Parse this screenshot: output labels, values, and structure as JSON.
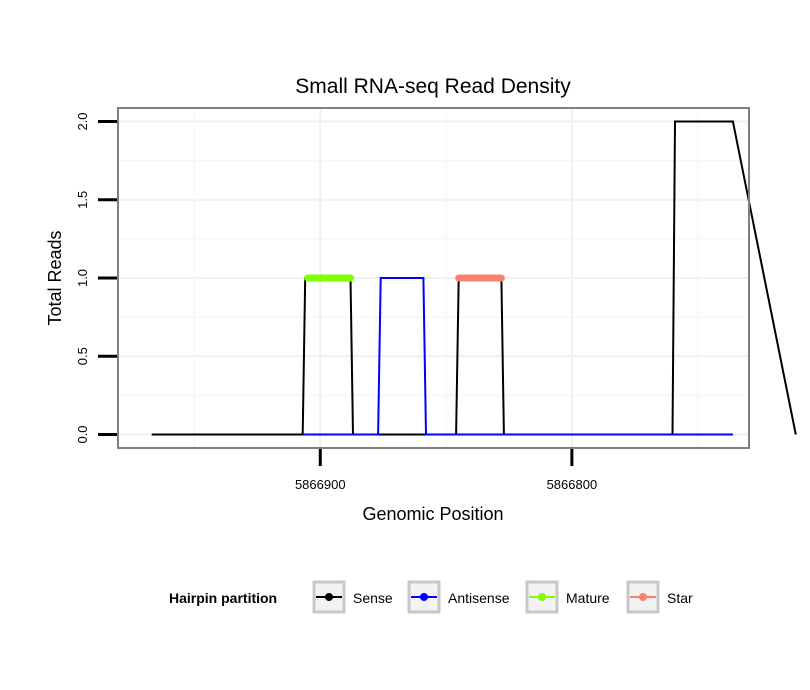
{
  "chart_data": {
    "type": "line",
    "title": "Small RNA-seq Read Density",
    "xlabel": "Genomic Position",
    "ylabel": "Total Reads",
    "x_reversed": true,
    "xlim": [
      5866980,
      5866730
    ],
    "ylim": [
      -0.08,
      2.08
    ],
    "x_ticks": [
      {
        "value": 5866900,
        "label": "5866900"
      },
      {
        "value": 5866800,
        "label": "5866800"
      }
    ],
    "y_ticks": [
      {
        "value": 0.0,
        "label": "0.0"
      },
      {
        "value": 0.5,
        "label": "0.5"
      },
      {
        "value": 1.0,
        "label": "1.0"
      },
      {
        "value": 1.5,
        "label": "1.5"
      },
      {
        "value": 2.0,
        "label": "2.0"
      }
    ],
    "grid": true,
    "series": [
      {
        "name": "Sense",
        "color": "#000000",
        "x": [
          5866967,
          5866907,
          5866906,
          5866888,
          5866887,
          5866846,
          5866845,
          5866828,
          5866827,
          5866760,
          5866759,
          5866736,
          5866711
        ],
        "y": [
          0,
          0,
          1,
          1,
          0,
          0,
          1,
          1,
          0,
          0,
          2,
          2,
          0
        ]
      },
      {
        "name": "Antisense",
        "color": "#0000ff",
        "x": [
          5866907,
          5866877,
          5866876,
          5866859,
          5866858,
          5866760,
          5866759,
          5866736
        ],
        "y": [
          0,
          0,
          1,
          1,
          0,
          0,
          0,
          0
        ]
      },
      {
        "name": "Mature",
        "color": "#7fff00",
        "x": [
          5866905,
          5866888
        ],
        "y": [
          1,
          1
        ]
      },
      {
        "name": "Star",
        "color": "#fa8072",
        "x": [
          5866845,
          5866828
        ],
        "y": [
          1,
          1
        ]
      }
    ]
  },
  "legend": {
    "title": "Hairpin partition",
    "items": [
      {
        "label": "Sense",
        "color": "#000000"
      },
      {
        "label": "Antisense",
        "color": "#0000ff"
      },
      {
        "label": "Mature",
        "color": "#7fff00"
      },
      {
        "label": "Star",
        "color": "#fa8072"
      }
    ]
  }
}
